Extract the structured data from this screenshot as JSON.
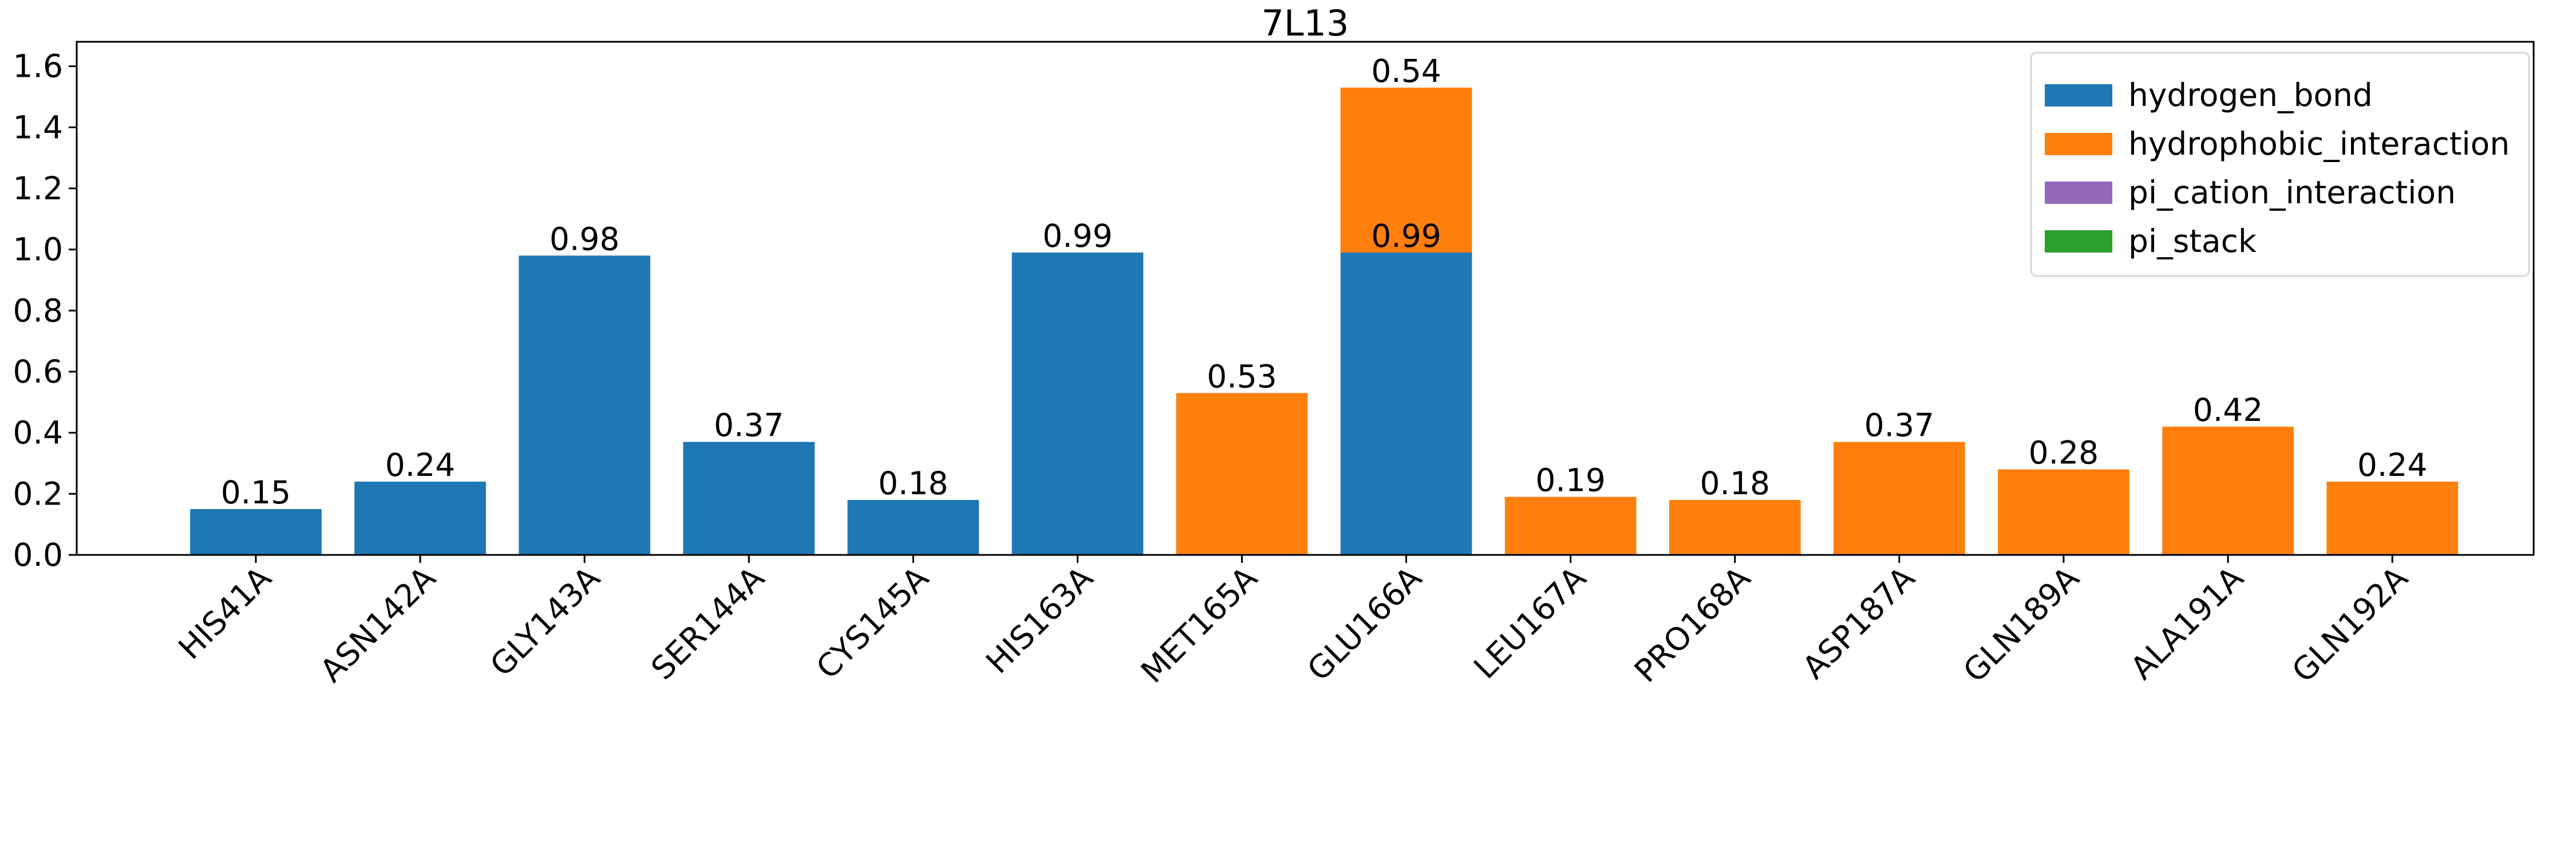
{
  "chart_data": {
    "type": "bar",
    "stacked": true,
    "title": "7L13",
    "xlabel": "",
    "ylabel": "",
    "categories": [
      "HIS41A",
      "ASN142A",
      "GLY143A",
      "SER144A",
      "CYS145A",
      "HIS163A",
      "MET165A",
      "GLU166A",
      "LEU167A",
      "PRO168A",
      "ASP187A",
      "GLN189A",
      "ALA191A",
      "GLN192A"
    ],
    "series": [
      {
        "name": "hydrogen_bond",
        "color": "#1f77b4",
        "values": [
          0.15,
          0.24,
          0.98,
          0.37,
          0.18,
          0.99,
          0,
          0.99,
          0,
          0,
          0,
          0,
          0,
          0
        ]
      },
      {
        "name": "hydrophobic_interaction",
        "color": "#ff7f0e",
        "values": [
          0,
          0,
          0,
          0,
          0,
          0,
          0.53,
          0.54,
          0.19,
          0.18,
          0.37,
          0.28,
          0.42,
          0.24
        ]
      },
      {
        "name": "pi_cation_interaction",
        "color": "#9467bd",
        "values": [
          0,
          0,
          0,
          0,
          0,
          0,
          0,
          0,
          0,
          0,
          0,
          0,
          0,
          0
        ]
      },
      {
        "name": "pi_stack",
        "color": "#2ca02c",
        "values": [
          0,
          0,
          0,
          0,
          0,
          0,
          0,
          0,
          0,
          0,
          0,
          0,
          0,
          0
        ]
      }
    ],
    "ylim": [
      0,
      1.68
    ],
    "yticks": [
      "0.0",
      "0.2",
      "0.4",
      "0.6",
      "0.8",
      "1.0",
      "1.2",
      "1.4",
      "1.6"
    ],
    "grid": false,
    "legend_position": "top-right",
    "data_labels": true
  }
}
